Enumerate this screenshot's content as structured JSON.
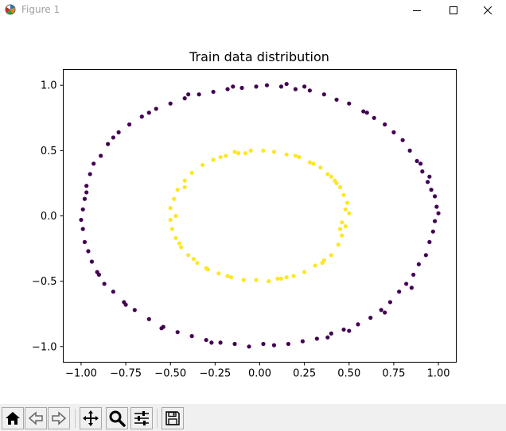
{
  "window": {
    "title": "Figure 1",
    "icon": "matplotlib-icon",
    "controls": [
      "minimize-icon",
      "maximize-icon",
      "close-icon"
    ]
  },
  "colors": {
    "outer_class": "#440154",
    "inner_class": "#fde725",
    "toolbar_bg": "#f0f0f0"
  },
  "chart_data": {
    "type": "scatter",
    "title": "Train data distribution",
    "xlabel": "",
    "ylabel": "",
    "xlim": [
      -1.1,
      1.1
    ],
    "ylim": [
      -1.12,
      1.12
    ],
    "xticks": [
      -1.0,
      -0.75,
      -0.5,
      -0.25,
      0.0,
      0.25,
      0.5,
      0.75,
      1.0
    ],
    "xtick_labels": [
      "−1.00",
      "−0.75",
      "−0.50",
      "−0.25",
      "0.00",
      "0.25",
      "0.50",
      "0.75",
      "1.00"
    ],
    "yticks": [
      -1.0,
      -0.5,
      0.0,
      0.5,
      1.0
    ],
    "ytick_labels": [
      "−1.0",
      "−0.5",
      "0.0",
      "0.5",
      "1.0"
    ],
    "grid": false,
    "legend": false,
    "series": [
      {
        "color": "#440154",
        "points": [
          [
            1.0,
            0.02
          ],
          [
            0.99,
            0.07
          ],
          [
            0.98,
            -0.04
          ],
          [
            0.98,
            0.15
          ],
          [
            0.97,
            -0.12
          ],
          [
            0.96,
            0.2
          ],
          [
            0.95,
            -0.2
          ],
          [
            0.94,
            0.26
          ],
          [
            0.93,
            -0.3
          ],
          [
            0.91,
            0.34
          ],
          [
            0.89,
            -0.37
          ],
          [
            0.88,
            0.42
          ],
          [
            0.86,
            -0.45
          ],
          [
            0.84,
            0.5
          ],
          [
            0.82,
            -0.52
          ],
          [
            0.8,
            0.58
          ],
          [
            0.78,
            -0.58
          ],
          [
            0.75,
            0.64
          ],
          [
            0.73,
            -0.66
          ],
          [
            0.7,
            0.7
          ],
          [
            0.68,
            -0.72
          ],
          [
            0.64,
            0.75
          ],
          [
            0.62,
            -0.78
          ],
          [
            0.58,
            0.8
          ],
          [
            0.55,
            -0.83
          ],
          [
            0.5,
            0.86
          ],
          [
            0.47,
            -0.87
          ],
          [
            0.43,
            0.89
          ],
          [
            0.4,
            -0.9
          ],
          [
            0.36,
            0.93
          ],
          [
            0.32,
            -0.94
          ],
          [
            0.28,
            0.96
          ],
          [
            0.24,
            -0.96
          ],
          [
            0.2,
            0.97
          ],
          [
            0.16,
            -0.98
          ],
          [
            0.12,
            0.99
          ],
          [
            0.08,
            -0.99
          ],
          [
            0.04,
            1.0
          ],
          [
            0.02,
            -0.98
          ],
          [
            -0.02,
            0.99
          ],
          [
            -0.06,
            -1.0
          ],
          [
            -0.1,
            0.98
          ],
          [
            -0.14,
            -0.98
          ],
          [
            -0.18,
            0.97
          ],
          [
            -0.22,
            -0.97
          ],
          [
            -0.26,
            0.95
          ],
          [
            -0.3,
            -0.95
          ],
          [
            -0.34,
            0.93
          ],
          [
            -0.38,
            -0.92
          ],
          [
            -0.42,
            0.9
          ],
          [
            -0.46,
            -0.89
          ],
          [
            -0.5,
            0.86
          ],
          [
            -0.54,
            -0.85
          ],
          [
            -0.58,
            0.82
          ],
          [
            -0.62,
            -0.79
          ],
          [
            -0.66,
            0.76
          ],
          [
            -0.7,
            -0.72
          ],
          [
            -0.73,
            0.7
          ],
          [
            -0.76,
            -0.66
          ],
          [
            -0.79,
            0.64
          ],
          [
            -0.82,
            -0.58
          ],
          [
            -0.85,
            0.55
          ],
          [
            -0.87,
            -0.52
          ],
          [
            -0.89,
            0.46
          ],
          [
            -0.91,
            -0.43
          ],
          [
            -0.93,
            0.4
          ],
          [
            -0.94,
            -0.35
          ],
          [
            -0.95,
            0.32
          ],
          [
            -0.96,
            -0.27
          ],
          [
            -0.97,
            0.23
          ],
          [
            -0.98,
            -0.2
          ],
          [
            -0.98,
            0.13
          ],
          [
            -0.99,
            -0.1
          ],
          [
            -0.99,
            0.05
          ],
          [
            -1.0,
            -0.03
          ],
          [
            0.25,
            0.99
          ],
          [
            -0.4,
            0.93
          ],
          [
            -0.62,
            0.79
          ],
          [
            0.7,
            -0.74
          ],
          [
            -0.82,
            0.6
          ],
          [
            0.9,
            0.4
          ],
          [
            -0.75,
            -0.68
          ],
          [
            0.5,
            -0.88
          ],
          [
            -0.27,
            -0.97
          ],
          [
            0.15,
            1.01
          ],
          [
            0.95,
            0.3
          ],
          [
            -0.9,
            -0.45
          ],
          [
            0.85,
            -0.55
          ],
          [
            -0.97,
            0.18
          ],
          [
            0.6,
            0.79
          ],
          [
            -0.55,
            -0.86
          ],
          [
            0.38,
            -0.93
          ],
          [
            -0.15,
            0.99
          ]
        ]
      },
      {
        "color": "#fde725",
        "points": [
          [
            0.5,
            0.02
          ],
          [
            0.49,
            0.1
          ],
          [
            0.48,
            -0.08
          ],
          [
            0.47,
            0.16
          ],
          [
            0.46,
            -0.15
          ],
          [
            0.45,
            0.22
          ],
          [
            0.44,
            -0.22
          ],
          [
            0.42,
            0.27
          ],
          [
            0.4,
            -0.3
          ],
          [
            0.38,
            0.32
          ],
          [
            0.36,
            -0.34
          ],
          [
            0.34,
            0.37
          ],
          [
            0.31,
            -0.38
          ],
          [
            0.28,
            0.41
          ],
          [
            0.25,
            -0.43
          ],
          [
            0.22,
            0.45
          ],
          [
            0.19,
            -0.46
          ],
          [
            0.15,
            0.47
          ],
          [
            0.12,
            -0.48
          ],
          [
            0.08,
            0.49
          ],
          [
            0.05,
            -0.5
          ],
          [
            0.02,
            0.5
          ],
          [
            -0.02,
            -0.49
          ],
          [
            -0.05,
            0.5
          ],
          [
            -0.09,
            -0.49
          ],
          [
            -0.12,
            0.48
          ],
          [
            -0.16,
            -0.47
          ],
          [
            -0.19,
            0.46
          ],
          [
            -0.23,
            -0.44
          ],
          [
            -0.26,
            0.43
          ],
          [
            -0.29,
            -0.41
          ],
          [
            -0.32,
            0.39
          ],
          [
            -0.35,
            -0.36
          ],
          [
            -0.38,
            0.33
          ],
          [
            -0.4,
            -0.3
          ],
          [
            -0.42,
            0.27
          ],
          [
            -0.44,
            -0.24
          ],
          [
            -0.46,
            0.2
          ],
          [
            -0.47,
            -0.17
          ],
          [
            -0.48,
            0.13
          ],
          [
            -0.49,
            -0.1
          ],
          [
            -0.5,
            0.06
          ],
          [
            -0.5,
            -0.03
          ],
          [
            0.48,
            0.05
          ],
          [
            0.46,
            -0.05
          ],
          [
            -0.47,
            0.0
          ],
          [
            0.3,
            0.4
          ],
          [
            -0.3,
            -0.4
          ],
          [
            0.35,
            -0.36
          ],
          [
            -0.22,
            0.45
          ],
          [
            0.43,
            0.25
          ],
          [
            -0.45,
            -0.21
          ],
          [
            0.1,
            -0.48
          ],
          [
            -0.08,
            0.48
          ],
          [
            0.2,
            0.46
          ],
          [
            -0.18,
            -0.46
          ],
          [
            0.45,
            -0.1
          ],
          [
            -0.42,
            0.22
          ],
          [
            0.15,
            -0.47
          ],
          [
            -0.14,
            0.49
          ],
          [
            0.4,
            0.3
          ],
          [
            -0.37,
            -0.33
          ]
        ]
      }
    ]
  },
  "toolbar": {
    "buttons": [
      {
        "name": "home-button",
        "icon": "home-icon"
      },
      {
        "name": "back-button",
        "icon": "back-arrow-icon"
      },
      {
        "name": "forward-button",
        "icon": "forward-arrow-icon"
      },
      {
        "name": "pan-button",
        "icon": "pan-icon"
      },
      {
        "name": "zoom-button",
        "icon": "zoom-icon"
      },
      {
        "name": "configure-subplots-button",
        "icon": "sliders-icon"
      },
      {
        "name": "save-button",
        "icon": "save-icon"
      }
    ]
  }
}
